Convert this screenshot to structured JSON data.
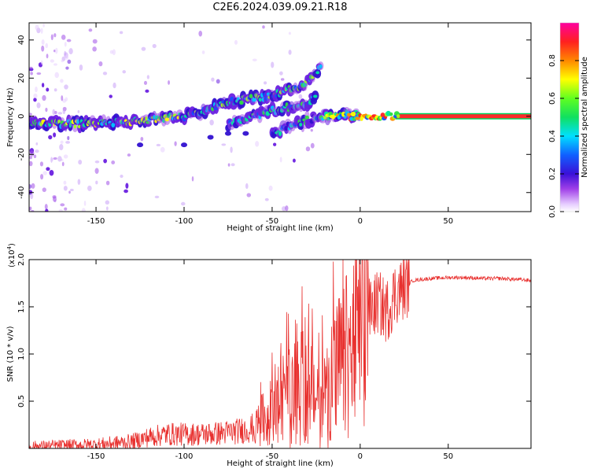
{
  "title": "C2E6.2024.039.09.21.R18",
  "chart_data": [
    {
      "type": "heatmap",
      "name": "spectrogram",
      "xlabel": "Height of straight line (km)",
      "ylabel": "Frequency (Hz)",
      "xlim": [
        -188,
        97
      ],
      "ylim": [
        -50,
        49
      ],
      "xticks": [
        -150,
        -100,
        -50,
        0,
        50
      ],
      "yticks": [
        -40,
        -20,
        0,
        20,
        40
      ],
      "colorbar": {
        "label": "Normalized spectral amplitude",
        "range": [
          0,
          1
        ],
        "ticks": [
          0.0,
          0.2,
          0.4,
          0.6,
          0.8
        ]
      },
      "features": [
        {
          "name": "main branch",
          "points": [
            [
              -188,
              -4
            ],
            [
              -150,
              -4
            ],
            [
              -120,
              -2
            ],
            [
              -100,
              0
            ],
            [
              -85,
              4
            ],
            [
              -75,
              7
            ],
            [
              -65,
              9
            ],
            [
              -55,
              10
            ],
            [
              -45,
              12
            ],
            [
              -35,
              16
            ],
            [
              -28,
              20
            ],
            [
              -22,
              26
            ]
          ]
        },
        {
          "name": "lower branch",
          "points": [
            [
              -75,
              -4
            ],
            [
              -60,
              0
            ],
            [
              -50,
              3
            ],
            [
              -40,
              5
            ],
            [
              -30,
              7
            ],
            [
              -25,
              10
            ]
          ]
        },
        {
          "name": "trailing branch",
          "points": [
            [
              -50,
              -10
            ],
            [
              -40,
              -5
            ],
            [
              -30,
              -2
            ],
            [
              -20,
              0
            ],
            [
              -10,
              1
            ],
            [
              0,
              1
            ]
          ]
        },
        {
          "name": "carrier line",
          "points": [
            [
              0,
              0
            ],
            [
              20,
              0
            ],
            [
              97,
              0
            ]
          ]
        }
      ]
    },
    {
      "type": "line",
      "name": "snr",
      "xlabel": "Height of straight line (km)",
      "ylabel": "SNR (10 * v/v)",
      "yscale_label": "(x10",
      "yscale_exp": "4",
      "xlim": [
        -188,
        97
      ],
      "ylim": [
        0,
        2.0
      ],
      "xticks": [
        -150,
        -100,
        -50,
        0,
        50
      ],
      "yticks": [
        0.5,
        1.0,
        1.5,
        2.0
      ],
      "ytick_labels": [
        "0.5",
        "1.0",
        "1.5",
        "2.0"
      ],
      "series": [
        {
          "name": "SNR",
          "color": "#e8312f",
          "x": [
            -188,
            -170,
            -150,
            -130,
            -120,
            -110,
            -100,
            -90,
            -80,
            -70,
            -60,
            -55,
            -50,
            -45,
            -40,
            -35,
            -30,
            -25,
            -20,
            -15,
            -10,
            -5,
            0,
            5,
            10,
            15,
            20,
            25,
            30,
            40,
            50,
            60,
            70,
            80,
            97
          ],
          "y": [
            0.02,
            0.03,
            0.04,
            0.07,
            0.12,
            0.15,
            0.15,
            0.15,
            0.16,
            0.18,
            0.22,
            0.3,
            0.38,
            0.5,
            0.55,
            0.6,
            0.65,
            0.55,
            0.55,
            0.75,
            0.9,
            1.0,
            1.3,
            1.45,
            1.55,
            1.45,
            1.65,
            1.7,
            1.78,
            1.8,
            1.81,
            1.81,
            1.8,
            1.8,
            1.78
          ]
        }
      ]
    }
  ]
}
